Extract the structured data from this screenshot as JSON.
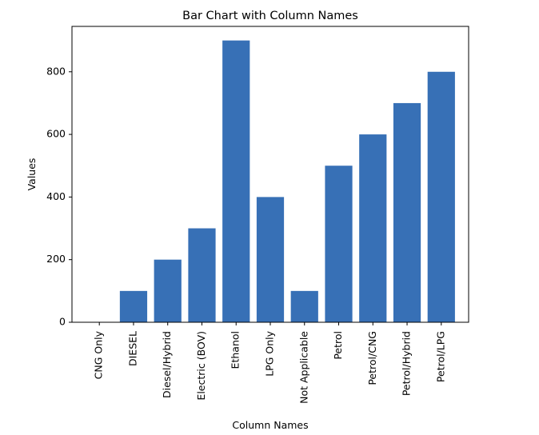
{
  "chart_data": {
    "type": "bar",
    "title": "Bar Chart with Column Names",
    "xlabel": "Column Names",
    "ylabel": "Values",
    "categories": [
      "CNG Only",
      "DIESEL",
      "Diesel/Hybrid",
      "Electric (BOV)",
      "Ethanol",
      "LPG Only",
      "Not Applicable",
      "Petrol",
      "Petrol/CNG",
      "Petrol/Hybrid",
      "Petrol/LPG"
    ],
    "values": [
      0,
      100,
      200,
      300,
      900,
      400,
      100,
      500,
      600,
      700,
      800
    ],
    "ylim": [
      0,
      945
    ],
    "yticks": [
      0,
      200,
      400,
      600,
      800
    ],
    "bar_color": "#3770b6",
    "grid": false,
    "legend": "none"
  }
}
